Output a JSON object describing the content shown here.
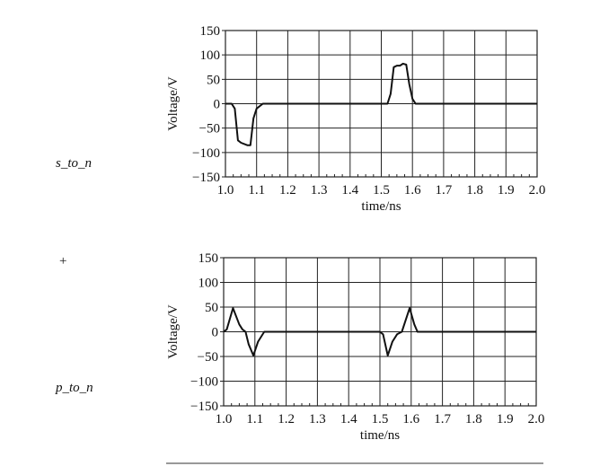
{
  "side_labels": {
    "top": "s_to_n",
    "plus": "+",
    "bottom": "p_to_n"
  },
  "chart_data": [
    {
      "type": "line",
      "title": "s_to_n",
      "xlabel": "time/ns",
      "ylabel": "Voltage/V",
      "xlim": [
        1.0,
        2.0
      ],
      "ylim": [
        -150,
        150
      ],
      "xticks": [
        "1.0",
        "1.1",
        "1.2",
        "1.3",
        "1.4",
        "1.5",
        "1.6",
        "1.7",
        "1.8",
        "1.9",
        "2.0"
      ],
      "yticks": [
        "150",
        "100",
        "50",
        "0",
        "−50",
        "−100",
        "−150"
      ],
      "grid": true,
      "series": [
        {
          "name": "s_to_n",
          "x": [
            1.0,
            1.02,
            1.03,
            1.04,
            1.05,
            1.07,
            1.08,
            1.09,
            1.1,
            1.12,
            1.5,
            1.52,
            1.53,
            1.54,
            1.55,
            1.56,
            1.57,
            1.58,
            1.59,
            1.6,
            1.61,
            2.0
          ],
          "y": [
            0,
            0,
            -10,
            -75,
            -80,
            -85,
            -85,
            -30,
            -10,
            0,
            0,
            0,
            20,
            75,
            78,
            78,
            82,
            80,
            40,
            10,
            0,
            0
          ]
        }
      ]
    },
    {
      "type": "line",
      "title": "p_to_n",
      "xlabel": "time/ns",
      "ylabel": "Voltage/V",
      "xlim": [
        1.0,
        2.0
      ],
      "ylim": [
        -150,
        150
      ],
      "xticks": [
        "1.0",
        "1.1",
        "1.2",
        "1.3",
        "1.4",
        "1.5",
        "1.6",
        "1.7",
        "1.8",
        "1.9",
        "2.0"
      ],
      "yticks": [
        "150",
        "100",
        "50",
        "0",
        "−50",
        "−100",
        "−150"
      ],
      "grid": true,
      "series": [
        {
          "name": "p_to_n",
          "x": [
            1.0,
            1.01,
            1.03,
            1.05,
            1.06,
            1.07,
            1.08,
            1.095,
            1.11,
            1.13,
            1.5,
            1.51,
            1.525,
            1.54,
            1.555,
            1.57,
            1.595,
            1.61,
            1.62,
            1.7,
            2.0
          ],
          "y": [
            0,
            5,
            48,
            15,
            5,
            0,
            -25,
            -48,
            -20,
            0,
            0,
            -5,
            -48,
            -20,
            -5,
            0,
            48,
            15,
            0,
            0,
            0
          ]
        }
      ]
    }
  ]
}
